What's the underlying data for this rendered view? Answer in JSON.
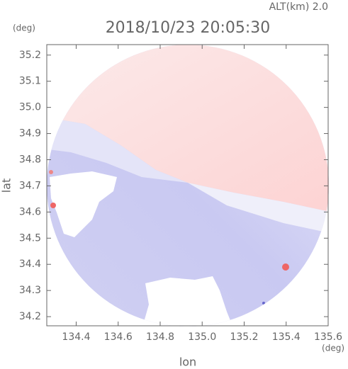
{
  "chart_data": {
    "type": "map",
    "title": "2018/10/23 20:05:30",
    "subtitle": "ALT(km) 2.0",
    "x_label": "lon",
    "y_label": "lat",
    "x_unit": "(deg)",
    "y_unit": "(deg)",
    "xlim": [
      134.26,
      135.6
    ],
    "ylim": [
      34.165,
      35.24
    ],
    "xticks": [
      134.4,
      134.6,
      134.8,
      {
        "value": 135,
        "label": "135.0"
      },
      135.2,
      135.4,
      135.6
    ],
    "yticks": [
      34.2,
      34.3,
      34.4,
      34.5,
      34.6,
      34.7,
      34.8,
      34.9,
      {
        "value": 35,
        "label": "35.0"
      },
      35.1,
      35.2
    ]
  }
}
